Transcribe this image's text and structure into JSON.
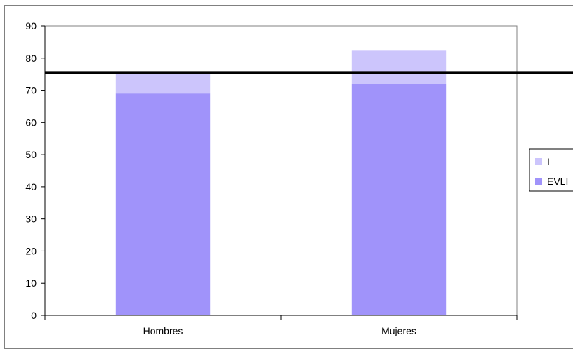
{
  "chart_data": {
    "type": "bar",
    "stacked": true,
    "categories": [
      "Hombres",
      "Mujeres"
    ],
    "series": [
      {
        "name": "EVLI",
        "values": [
          69,
          72
        ],
        "color": "#a093fa"
      },
      {
        "name": "I",
        "values": [
          6.5,
          10.5
        ],
        "color": "#ccc5fc"
      }
    ],
    "reference_line": {
      "value": 75.5,
      "color": "#000000"
    },
    "ylim": [
      0,
      90
    ],
    "yticks": [
      0,
      10,
      20,
      30,
      40,
      50,
      60,
      70,
      80,
      90
    ],
    "grid": false,
    "legend_position": "right",
    "legend": [
      "I",
      "EVLI"
    ],
    "title": "",
    "xlabel": "",
    "ylabel": ""
  }
}
